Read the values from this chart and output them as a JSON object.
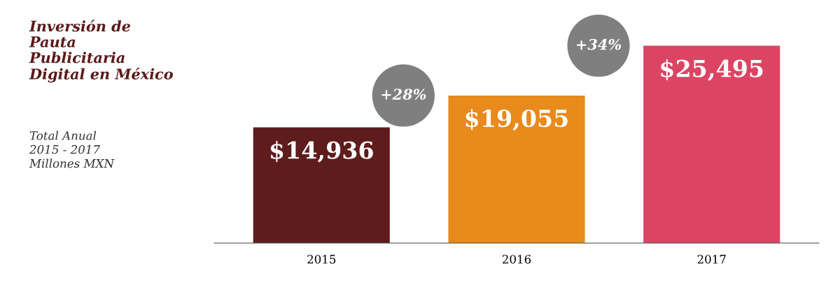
{
  "chart_data": {
    "type": "bar",
    "title": "Inversión de\nPauta\nPublicitaria\nDigital en México",
    "subtitle": "Total Anual\n2015 - 2017\nMillones MXN",
    "categories": [
      "2015",
      "2016",
      "2017"
    ],
    "values": [
      14936,
      19055,
      25495
    ],
    "colors": [
      "#5e1c1c",
      "#e98a1c",
      "#db4563"
    ],
    "value_labels": [
      "$14,936",
      "$19,055",
      "$25,495"
    ],
    "annotations": [
      "+28%",
      "+34%"
    ],
    "grid": false
  }
}
